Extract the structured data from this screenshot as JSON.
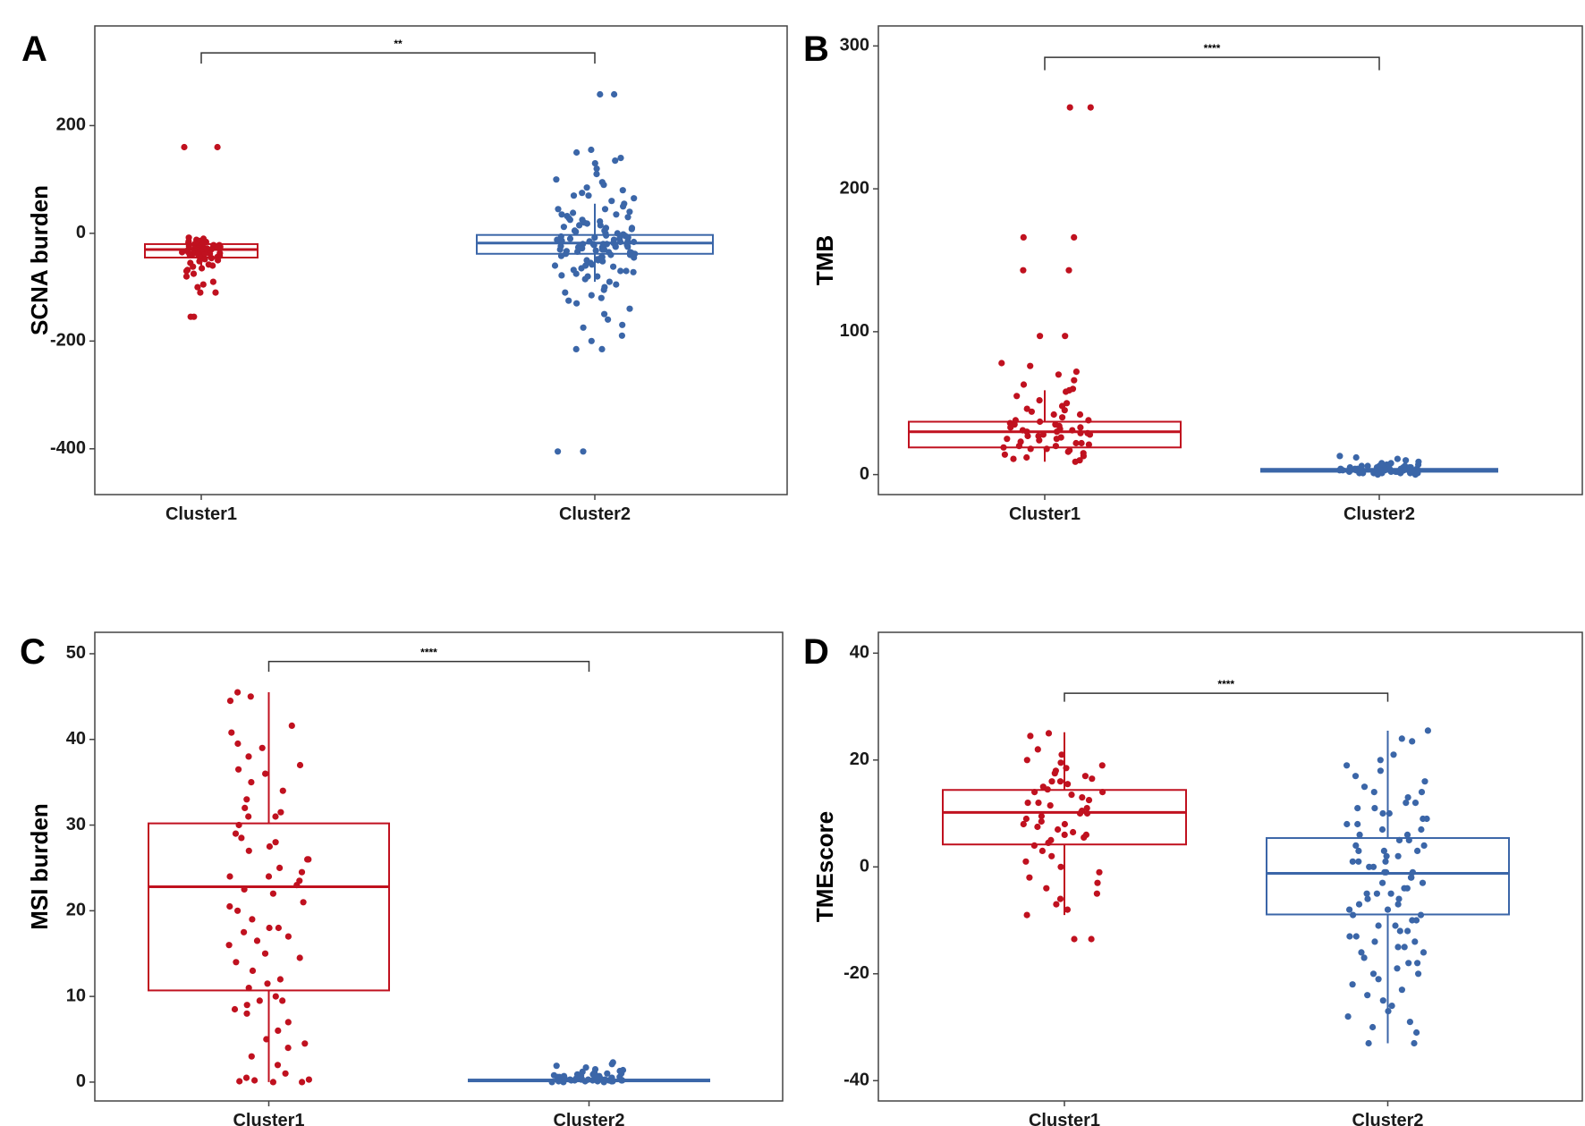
{
  "colors": {
    "cluster1": "#c0111f",
    "cluster2": "#3b66a8",
    "axis": "#444444",
    "bracket": "#333333"
  },
  "chart_data": [
    {
      "type": "box",
      "panel": "A",
      "ylabel": "SCNA burden",
      "xlabel": "",
      "categories": [
        "Cluster1",
        "Cluster2"
      ],
      "ylim": [
        -485,
        385
      ],
      "yticks": [
        200,
        0,
        -200,
        -400
      ],
      "yticklabels": [
        "200",
        "0",
        "-200",
        "-400"
      ],
      "significance": {
        "label": "**",
        "y": 335,
        "tick_to": 315
      },
      "series": [
        {
          "name": "Cluster1",
          "box": {
            "q1": -45,
            "median": -30,
            "q3": -20,
            "whisker_low": -60,
            "whisker_high": -10
          },
          "points": [
            160,
            160,
            -10,
            -12,
            -14,
            -16,
            -18,
            -20,
            -20,
            -22,
            -22,
            -24,
            -25,
            -25,
            -26,
            -27,
            -28,
            -28,
            -29,
            -30,
            -30,
            -31,
            -32,
            -32,
            -33,
            -34,
            -35,
            -35,
            -36,
            -37,
            -38,
            -38,
            -39,
            -40,
            -40,
            -42,
            -44,
            -45,
            -46,
            -48,
            -50,
            -52,
            -55,
            -58,
            -60,
            -62,
            -65,
            -68,
            -70,
            -75,
            -80,
            -90,
            -95,
            -100,
            -110,
            -110,
            -155,
            -155,
            -8,
            -15
          ]
        },
        {
          "name": "Cluster2",
          "box": {
            "q1": -38,
            "median": -18,
            "q3": -3,
            "whisker_low": -90,
            "whisker_high": 55
          },
          "points": [
            258,
            258,
            155,
            150,
            140,
            135,
            130,
            120,
            110,
            100,
            95,
            90,
            85,
            80,
            75,
            70,
            70,
            65,
            60,
            55,
            50,
            45,
            45,
            40,
            38,
            35,
            32,
            30,
            28,
            25,
            22,
            20,
            18,
            15,
            12,
            10,
            8,
            5,
            3,
            0,
            -2,
            -4,
            -6,
            -8,
            -10,
            -12,
            -14,
            -15,
            -16,
            -18,
            -20,
            -20,
            -22,
            -24,
            -25,
            -26,
            -28,
            -30,
            -30,
            -32,
            -34,
            -35,
            -36,
            -38,
            -40,
            -42,
            -45,
            -48,
            -50,
            -52,
            -55,
            -58,
            -60,
            -62,
            -65,
            -68,
            -70,
            -72,
            -75,
            -78,
            -80,
            -85,
            -90,
            -95,
            -100,
            -105,
            -110,
            -115,
            -120,
            -125,
            -130,
            -140,
            -150,
            -160,
            -170,
            -175,
            -190,
            -200,
            -215,
            -215,
            -405,
            -405,
            -5,
            -10,
            -15,
            -20,
            -25,
            -30,
            -35,
            -40,
            -45,
            -50,
            0,
            5,
            10,
            -8,
            -12,
            -16,
            -22,
            -28,
            -33,
            -38,
            -44,
            -18,
            -20,
            -24,
            -26,
            15,
            25,
            35,
            -60,
            -70,
            -80
          ]
        }
      ]
    },
    {
      "type": "box",
      "panel": "B",
      "ylabel": "TMB",
      "xlabel": "",
      "categories": [
        "Cluster1",
        "Cluster2"
      ],
      "ylim": [
        -14,
        314
      ],
      "yticks": [
        300,
        200,
        100,
        0
      ],
      "yticklabels": [
        "300",
        "200",
        "100",
        "0"
      ],
      "significance": {
        "label": "****",
        "y": 292,
        "tick_to": 283
      },
      "series": [
        {
          "name": "Cluster1",
          "box": {
            "q1": 19,
            "median": 30,
            "q3": 37,
            "whisker_low": 9,
            "whisker_high": 59
          },
          "points": [
            257,
            257,
            166,
            166,
            143,
            143,
            97,
            97,
            78,
            76,
            72,
            70,
            66,
            63,
            60,
            59,
            58,
            55,
            52,
            50,
            48,
            46,
            44,
            42,
            40,
            38,
            37,
            36,
            35,
            34,
            33,
            32,
            31,
            30,
            30,
            29,
            28,
            28,
            27,
            26,
            25,
            24,
            23,
            22,
            21,
            20,
            19,
            18,
            17,
            16,
            15,
            14,
            13,
            12,
            11,
            10,
            9,
            35,
            33,
            31,
            29,
            27,
            25,
            22,
            20,
            18,
            38,
            42,
            45
          ]
        },
        {
          "name": "Cluster2",
          "box": {
            "q1": 2,
            "median": 3,
            "q3": 4,
            "whisker_low": 0,
            "whisker_high": 6
          },
          "points": [
            13,
            12,
            11,
            10,
            9,
            8,
            8,
            7,
            7,
            6,
            6,
            6,
            5,
            5,
            5,
            5,
            4,
            4,
            4,
            4,
            4,
            3,
            3,
            3,
            3,
            3,
            3,
            3,
            2,
            2,
            2,
            2,
            2,
            2,
            1,
            1,
            1,
            1,
            1,
            0,
            0,
            5,
            4,
            3,
            2,
            3,
            4,
            2,
            3,
            1,
            6,
            7,
            3,
            2,
            4,
            5,
            3,
            2,
            1,
            3
          ]
        }
      ]
    },
    {
      "type": "box",
      "panel": "C",
      "ylabel": "MSI burden",
      "xlabel": "",
      "categories": [
        "Cluster1",
        "Cluster2"
      ],
      "ylim": [
        -2.2,
        52.5
      ],
      "yticks": [
        50,
        40,
        30,
        20,
        10,
        0
      ],
      "yticklabels": [
        "50",
        "40",
        "30",
        "20",
        "10",
        "0"
      ],
      "significance": {
        "label": "****",
        "y": 49.1,
        "tick_to": 47.9
      },
      "series": [
        {
          "name": "Cluster1",
          "box": {
            "q1": 10.7,
            "median": 22.8,
            "q3": 30.2,
            "whisker_low": 0,
            "whisker_high": 45.5
          },
          "points": [
            45.5,
            45,
            44.5,
            41.6,
            40.8,
            39.5,
            39,
            38,
            37,
            36.5,
            35,
            34,
            33,
            32,
            31.5,
            31,
            30,
            29,
            28.5,
            28,
            27.5,
            27,
            26,
            25,
            24.5,
            24,
            23.5,
            23,
            22.5,
            22,
            21,
            20.5,
            20,
            19,
            18,
            17.5,
            17,
            16.5,
            16,
            15,
            14.5,
            14,
            13,
            12,
            11.5,
            11,
            10,
            9.5,
            9,
            8.5,
            8,
            7,
            6,
            5,
            4.5,
            4,
            3,
            2,
            1,
            0.5,
            0.3,
            0.2,
            0.1,
            0,
            0,
            26,
            24,
            18,
            9.5,
            31,
            36
          ]
        },
        {
          "name": "Cluster2",
          "box": {
            "q1": 0.1,
            "median": 0.2,
            "q3": 0.3,
            "whisker_low": 0,
            "whisker_high": 0.5
          },
          "points": [
            2.3,
            2.1,
            1.9,
            1.7,
            1.5,
            1.4,
            1.2,
            1.1,
            1,
            0.9,
            0.8,
            0.8,
            0.7,
            0.7,
            0.6,
            0.6,
            0.5,
            0.5,
            0.5,
            0.4,
            0.4,
            0.4,
            0.3,
            0.3,
            0.3,
            0.3,
            0.2,
            0.2,
            0.2,
            0.2,
            0.2,
            0.1,
            0.1,
            0.1,
            0.1,
            0,
            0,
            0,
            0.3,
            0.4,
            0.6,
            0.8,
            1,
            1.3,
            0.2,
            0.1,
            0.5,
            0.7,
            0.9,
            0.3
          ]
        }
      ]
    },
    {
      "type": "box",
      "panel": "D",
      "ylabel": "TMEscore",
      "xlabel": "",
      "categories": [
        "Cluster1",
        "Cluster2"
      ],
      "ylim": [
        -43.8,
        43.9
      ],
      "yticks": [
        40,
        20,
        0,
        -20,
        -40
      ],
      "yticklabels": [
        "40",
        "20",
        "0",
        "-20",
        "-40"
      ],
      "significance": {
        "label": "****",
        "y": 32.5,
        "tick_to": 30.9
      },
      "series": [
        {
          "name": "Cluster1",
          "box": {
            "q1": 4.2,
            "median": 10.2,
            "q3": 14.4,
            "whisker_low": -9,
            "whisker_high": 25.2
          },
          "points": [
            25,
            24.5,
            22,
            21,
            20,
            19.5,
            19,
            18.5,
            18,
            17.5,
            17,
            16.5,
            16,
            15.5,
            15,
            14.5,
            14,
            13.5,
            13,
            12.5,
            12,
            11.5,
            11,
            10.5,
            10,
            9.5,
            9,
            8.5,
            8,
            7.5,
            7,
            6.5,
            6,
            5.5,
            5,
            4.5,
            4,
            3,
            2,
            1,
            0,
            -1,
            -2,
            -3,
            -4,
            -5,
            -6,
            -7,
            -8,
            -9,
            -13.5,
            -13.5,
            12,
            10,
            8,
            14,
            16,
            6
          ]
        },
        {
          "name": "Cluster2",
          "box": {
            "q1": -8.9,
            "median": -1.2,
            "q3": 5.4,
            "whisker_low": -33,
            "whisker_high": 25.5
          },
          "points": [
            25.5,
            24,
            23.5,
            21,
            20,
            19,
            18,
            17,
            16,
            15,
            14,
            13,
            12,
            11,
            10,
            9,
            8,
            7,
            6,
            5,
            4,
            3,
            2,
            1,
            0,
            -1,
            -2,
            -3,
            -4,
            -5,
            -6,
            -7,
            -8,
            -9,
            -10,
            -11,
            -12,
            -13,
            -14,
            -15,
            -16,
            -17,
            -18,
            -19,
            -20,
            -21,
            -22,
            -23,
            -24,
            -25,
            -26,
            -27,
            -28,
            -29,
            -30,
            -31,
            -33,
            -33,
            5,
            3,
            1,
            -1,
            -3,
            -5,
            -7,
            -9,
            0,
            2,
            4,
            6,
            8,
            10,
            -2,
            -4,
            -6,
            -8,
            -10,
            -12,
            12,
            -14,
            -16,
            -18,
            14,
            -20,
            11,
            7,
            -11,
            -13,
            9,
            -15,
            3,
            -5,
            1,
            -1
          ]
        }
      ]
    }
  ]
}
